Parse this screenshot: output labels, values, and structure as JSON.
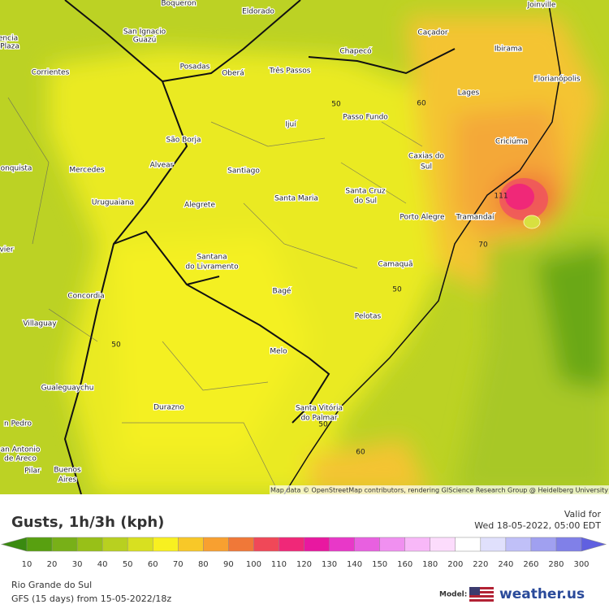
{
  "map": {
    "cities": [
      "Boqueron",
      "Eldorado",
      "Joinville",
      "San Ignacio",
      "Guazú",
      "Caçador",
      "Chapecó",
      "Ibirama",
      "Posadas",
      "Oberá",
      "Três Passos",
      "Corrientes",
      "Florianópolis",
      "Lages",
      "encia",
      "Plaza",
      "Passo Fundo",
      "Ijuí",
      "São Borja",
      "Criciúma",
      "Caxias do",
      "Sul",
      "Alvear",
      "onquista",
      "Mercedes",
      "Santiago",
      "Santa Cruz",
      "do Sul",
      "Santa Maria",
      "Uruguaiana",
      "Alegrete",
      "Porto Alegre",
      "Tramandaí",
      "Santana",
      "do Livramento",
      "Camaquã",
      "vier",
      "Bagé",
      "Concordia",
      "Pelotas",
      "Villaguay",
      "Melo",
      "Gualeguaychu",
      "Durazno",
      "Santa Vitória",
      "do Palmar",
      "n Pedro",
      "an Antonio",
      "de Areco",
      "Pilar",
      "Buenos",
      "Aires"
    ],
    "contours": [
      "50",
      "60",
      "111",
      "70",
      "50",
      "50",
      "50",
      "60"
    ],
    "attribution": "Map data © OpenStreetMap contributors, rendering GIScience Research Group @ Heidelberg University"
  },
  "footer": {
    "title": "Gusts, 1h/3h (kph)",
    "valid_label": "Valid for",
    "valid_time": "Wed 18-05-2022, 05:00 EDT",
    "region": "Rio Grande do Sul",
    "model_run": "GFS (15 days) from 15-05-2022/18z",
    "model_label": "Model:",
    "brand": "weather.us"
  },
  "legend": {
    "ticks": [
      10,
      20,
      30,
      40,
      50,
      60,
      70,
      80,
      90,
      100,
      110,
      120,
      130,
      140,
      150,
      160,
      180,
      200,
      220,
      240,
      260,
      280,
      300
    ],
    "colors": [
      "#3a8a10",
      "#58a010",
      "#78b018",
      "#98c018",
      "#b8d020",
      "#d8e020",
      "#f8f020",
      "#f8c828",
      "#f8a030",
      "#f07838",
      "#f04858",
      "#f02878",
      "#e818a0",
      "#e838c8",
      "#e860e0",
      "#f090f0",
      "#f8b8f8",
      "#fcdcfc",
      "#ffffff",
      "#e0e0fc",
      "#c0c0f8",
      "#a0a0f0",
      "#8080e8",
      "#6060e0"
    ]
  }
}
